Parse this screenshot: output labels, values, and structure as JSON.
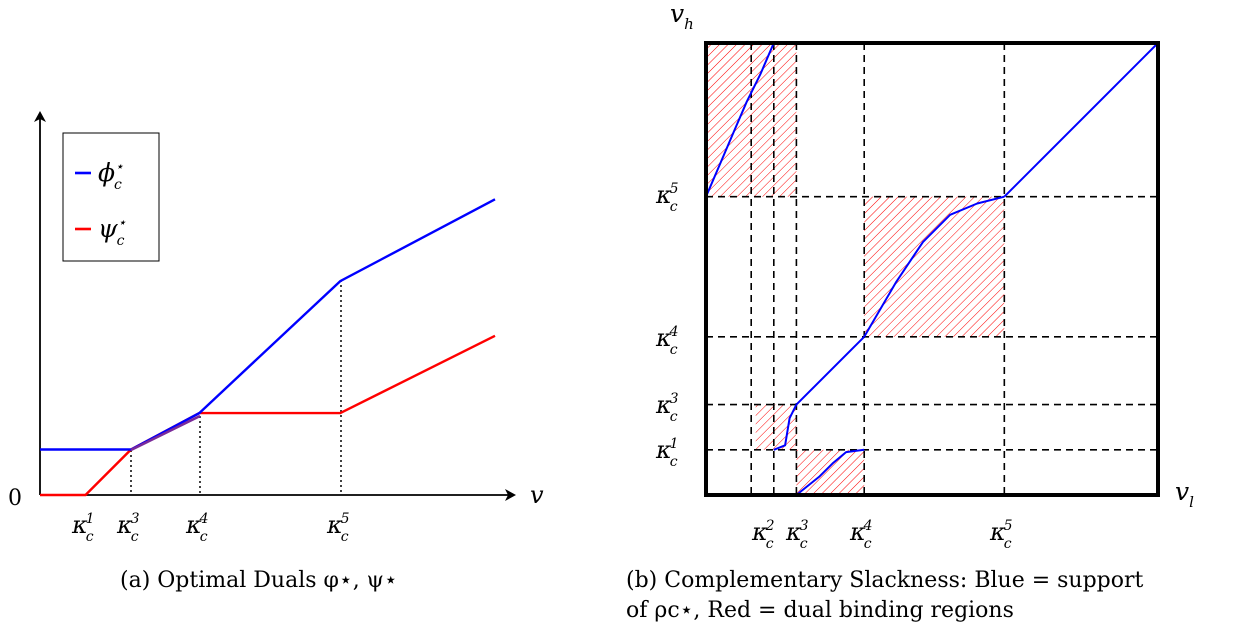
{
  "panel_a": {
    "caption": "(a) Optimal Duals φ⋆, ψ⋆",
    "xlabel": "v",
    "origin_label": "0",
    "legend": [
      "φc⋆",
      "ψc⋆"
    ],
    "colors": {
      "phi": "#0000ff",
      "psi": "#ff0000"
    }
  },
  "panel_b": {
    "caption_line1": "(b) Complementary Slackness: Blue = support",
    "caption_line2": "of ρc⋆, Red = dual binding regions",
    "xlabel": "vl",
    "ylabel": "vh",
    "x_ticks": [
      "κc2",
      "κc3",
      "κc4",
      "κc5"
    ],
    "y_ticks": [
      "κc5",
      "κc4",
      "κc3",
      "κc1"
    ],
    "colors": {
      "support": "#0000ff",
      "binding": "#ff0000"
    }
  },
  "chart_data": [
    {
      "type": "line",
      "title": "",
      "xlabel": "v",
      "ylabel": "",
      "x_tick_labels": [
        "κc1",
        "κc3",
        "κc4",
        "κc5"
      ],
      "x_ticks": [
        1,
        2,
        3.5,
        6.6
      ],
      "xlim": [
        0,
        10
      ],
      "ylim": [
        0,
        8.5
      ],
      "series": [
        {
          "name": "φc⋆",
          "color": "#0000ff",
          "x": [
            0,
            2,
            3.5,
            6.6,
            10
          ],
          "y": [
            1,
            1,
            1.8,
            4.7,
            6.5
          ]
        },
        {
          "name": "ψc⋆",
          "color": "#ff0000",
          "x": [
            0,
            1,
            2,
            3.5,
            6.6,
            10
          ],
          "y": [
            0,
            0,
            1,
            1.8,
            1.8,
            3.5
          ]
        }
      ],
      "guides_x": [
        2,
        3.5,
        6.6
      ],
      "legend_position": "top-left"
    },
    {
      "type": "scatter",
      "title": "",
      "xlabel": "vl",
      "ylabel": "vh",
      "x_tick_labels": [
        "κc2",
        "κc3",
        "κc4",
        "κc5"
      ],
      "x_ticks": [
        1.5,
        2,
        3.5,
        6.6
      ],
      "y_tick_labels": [
        "κc1",
        "κc3",
        "κc4",
        "κc5"
      ],
      "y_ticks": [
        1,
        2,
        3.5,
        6.6
      ],
      "extra_dashed_x": [
        1
      ],
      "xlim": [
        0,
        10
      ],
      "ylim": [
        0,
        10
      ],
      "support_curves": [
        {
          "x": [
            0,
            0.3,
            0.6,
            0.9,
            1.2,
            1.5
          ],
          "y": [
            6.6,
            7.3,
            8.0,
            8.7,
            9.3,
            10
          ]
        },
        {
          "x": [
            1.5,
            1.75,
            1.85,
            2
          ],
          "y": [
            1,
            1.1,
            1.7,
            2
          ]
        },
        {
          "x": [
            2,
            3.5
          ],
          "y": [
            2,
            3.5
          ]
        },
        {
          "x": [
            2,
            2.5,
            2.8,
            3.1,
            3.5
          ],
          "y": [
            0,
            0.4,
            0.7,
            0.95,
            1
          ]
        },
        {
          "x": [
            3.5,
            4.2,
            4.8,
            5.4,
            6.0,
            6.6
          ],
          "y": [
            3.5,
            4.7,
            5.6,
            6.2,
            6.45,
            6.6
          ]
        },
        {
          "x": [
            6.6,
            10
          ],
          "y": [
            6.6,
            10
          ]
        }
      ],
      "binding_regions": [
        {
          "x": [
            0,
            2
          ],
          "y": [
            6.6,
            10
          ]
        },
        {
          "x": [
            2,
            3.5
          ],
          "y": [
            0,
            1
          ]
        },
        {
          "x": [
            3.5,
            6.6
          ],
          "y": [
            3.5,
            6.6
          ]
        },
        {
          "x": [
            1.1,
            2
          ],
          "y": [
            1,
            2
          ]
        }
      ]
    }
  ]
}
